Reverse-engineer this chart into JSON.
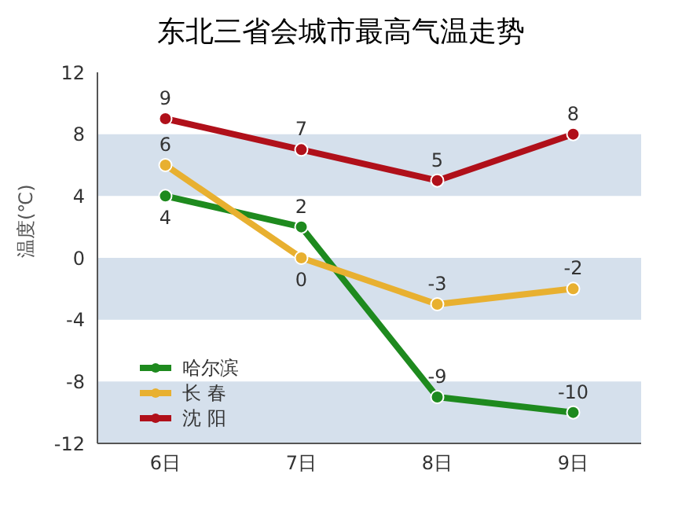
{
  "chart_data": {
    "type": "line",
    "title": "东北三省会城市最高气温走势",
    "ylabel": "温度(℃)",
    "categories": [
      "6日",
      "7日",
      "8日",
      "9日"
    ],
    "series": [
      {
        "name": "哈尔滨",
        "color": "#1e8a1e",
        "values": [
          4,
          2,
          -9,
          -10
        ]
      },
      {
        "name": "长 春",
        "color": "#e8b030",
        "values": [
          6,
          0,
          -3,
          -2
        ]
      },
      {
        "name": "沈 阳",
        "color": "#b0101a",
        "values": [
          9,
          7,
          5,
          8
        ]
      }
    ],
    "ylim": [
      -12,
      12
    ],
    "yticks": [
      -12,
      -8,
      -4,
      0,
      4,
      8,
      12
    ],
    "bands": [
      {
        "axis": "y",
        "from": 4,
        "to": 8,
        "color": "#d5e0ec"
      },
      {
        "axis": "y",
        "from": -4,
        "to": 0,
        "color": "#d5e0ec"
      },
      {
        "axis": "y",
        "from": -12,
        "to": -8,
        "color": "#d5e0ec"
      }
    ],
    "data_labels": true,
    "legend": "bottom left",
    "marker": "circle",
    "line_style": "solid",
    "grid": false
  }
}
